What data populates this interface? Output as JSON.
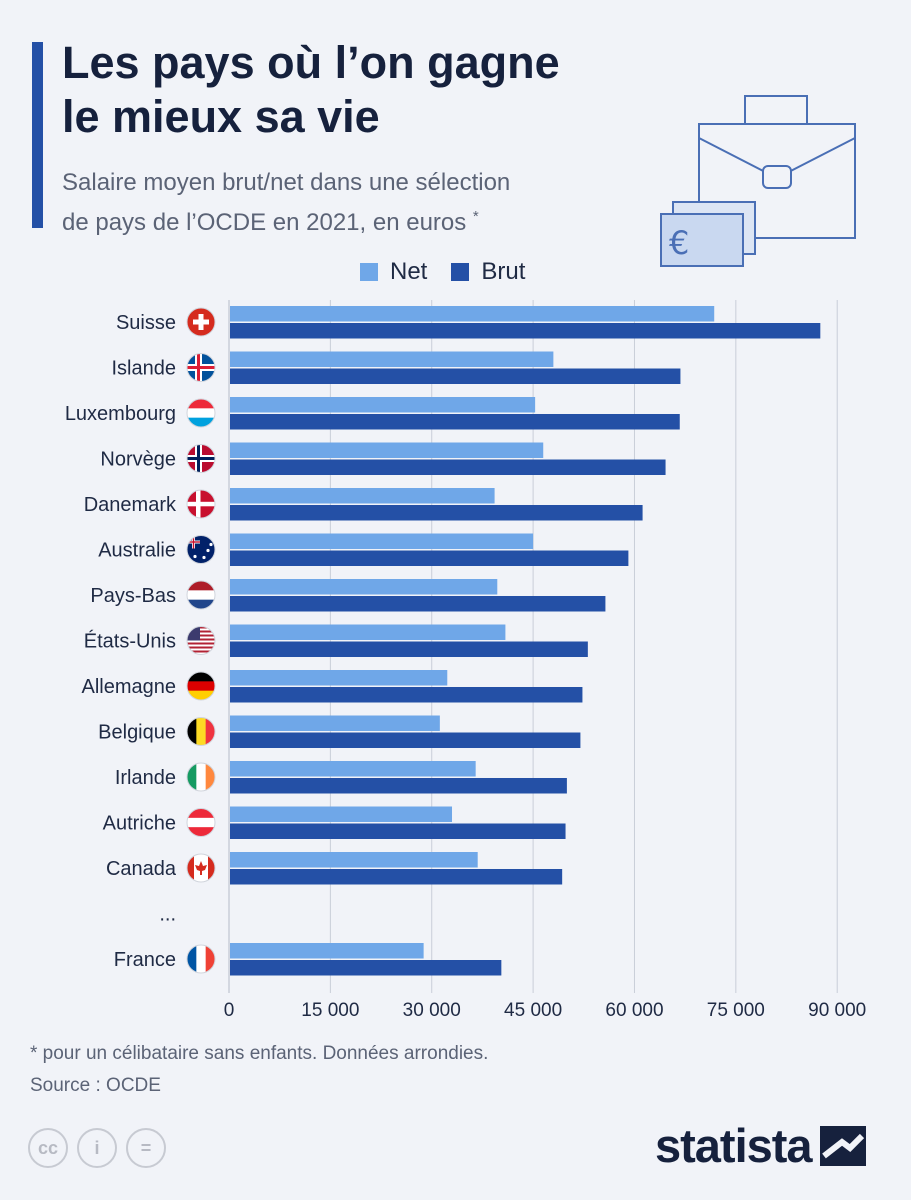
{
  "header": {
    "title_line1": "Les pays où l’on gagne",
    "title_line2": "le mieux sa vie",
    "subtitle_line1": "Salaire moyen brut/net dans une sélection",
    "subtitle_line2": "de pays de l’OCDE en 2021, en euros",
    "subtitle_mark": "*"
  },
  "legend": {
    "net_label": "Net",
    "brut_label": "Brut"
  },
  "colors": {
    "net": "#6fa7e8",
    "brut": "#2450a6",
    "grid": "#c9ced8",
    "text": "#1f2a44",
    "accent": "#2450a6"
  },
  "chart_data": {
    "type": "bar",
    "orientation": "horizontal",
    "categories": [
      "Suisse",
      "Islande",
      "Luxembourg",
      "Norvège",
      "Danemark",
      "Australie",
      "Pays-Bas",
      "États-Unis",
      "Allemagne",
      "Belgique",
      "Irlande",
      "Autriche",
      "Canada",
      "...",
      "France"
    ],
    "flag_icons": [
      "flag-switzerland-icon",
      "flag-iceland-icon",
      "flag-luxembourg-icon",
      "flag-norway-icon",
      "flag-denmark-icon",
      "flag-australia-icon",
      "flag-netherlands-icon",
      "flag-usa-icon",
      "flag-germany-icon",
      "flag-belgium-icon",
      "flag-ireland-icon",
      "flag-austria-icon",
      "flag-canada-icon",
      "",
      "flag-france-icon"
    ],
    "series": [
      {
        "name": "Net",
        "values": [
          71800,
          48000,
          45300,
          46500,
          39300,
          45000,
          39700,
          40900,
          32300,
          31200,
          36500,
          33000,
          36800,
          null,
          28800
        ]
      },
      {
        "name": "Brut",
        "values": [
          87500,
          66800,
          66700,
          64600,
          61200,
          59100,
          55700,
          53100,
          52300,
          52000,
          50000,
          49800,
          49300,
          null,
          40300
        ]
      }
    ],
    "xlim": [
      0,
      95000
    ],
    "xticks": [
      0,
      15000,
      30000,
      45000,
      60000,
      75000,
      90000
    ],
    "xtick_labels": [
      "0",
      "15 000",
      "30 000",
      "45 000",
      "60 000",
      "75 000",
      "90 000"
    ],
    "grid": true,
    "legend_position": "top"
  },
  "footer": {
    "note": "* pour un célibataire sans enfants. Données arrondies.",
    "source": "Source : OCDE",
    "brand": "statista",
    "license_icons": [
      "cc",
      "i",
      "="
    ]
  },
  "illustration": {
    "currency_symbol": "€"
  }
}
